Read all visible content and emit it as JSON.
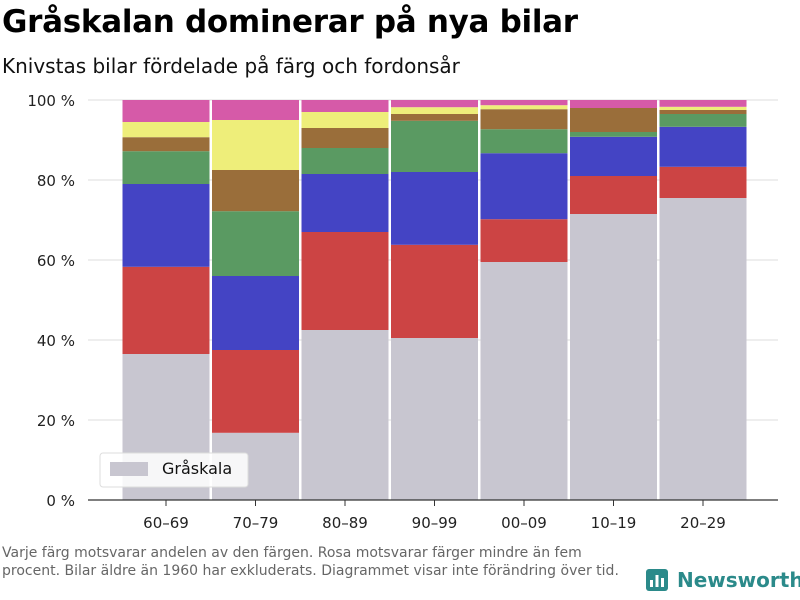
{
  "title": "Gråskalan dominerar på nya bilar",
  "subtitle": "Knivstas bilar fördelade på färg och fordonsår",
  "note": "Varje färg motsvarar andelen av den färgen. Rosa motsvarar färger mindre än fem procent. Bilar äldre än 1960 har exkluderats. Diagrammet visar inte förändring över tid.",
  "brand": {
    "name": "Newsworthy",
    "color": "#2b8a8a"
  },
  "chart_data": {
    "type": "bar",
    "stacked": true,
    "categories": [
      "60–69",
      "70–79",
      "80–89",
      "90–99",
      "00–09",
      "10–19",
      "20–29"
    ],
    "ylim": [
      0,
      100
    ],
    "yticks": [
      0,
      20,
      40,
      60,
      80,
      100
    ],
    "ytick_labels": [
      "0 %",
      "20 %",
      "40 %",
      "60 %",
      "80 %",
      "100 %"
    ],
    "grid": true,
    "legend": {
      "position": "bottom-left",
      "entries": [
        "Gråskala"
      ]
    },
    "series": [
      {
        "name": "Gråskala",
        "color": "#c8c6d0",
        "values": [
          36.5,
          16.8,
          42.5,
          40.5,
          59.5,
          71.5,
          75.5
        ]
      },
      {
        "color": "#cc4444",
        "values": [
          21.8,
          20.7,
          24.5,
          23.3,
          10.7,
          9.5,
          7.8
        ]
      },
      {
        "color": "#4444c4",
        "values": [
          20.7,
          18.5,
          14.5,
          18.2,
          16.5,
          9.8,
          10.0
        ]
      },
      {
        "color": "#5a9a62",
        "values": [
          8.2,
          16.2,
          6.5,
          12.8,
          6.0,
          1.2,
          3.2
        ]
      },
      {
        "color": "#9a6e3a",
        "values": [
          3.5,
          10.3,
          5.0,
          1.7,
          5.0,
          6.0,
          1.0
        ]
      },
      {
        "color": "#eeee7a",
        "values": [
          3.8,
          12.5,
          4.0,
          1.7,
          1.0,
          0.0,
          0.8
        ]
      },
      {
        "color": "#d65aa8",
        "values": [
          5.5,
          5.0,
          3.0,
          1.8,
          1.3,
          2.0,
          1.7
        ]
      }
    ]
  }
}
